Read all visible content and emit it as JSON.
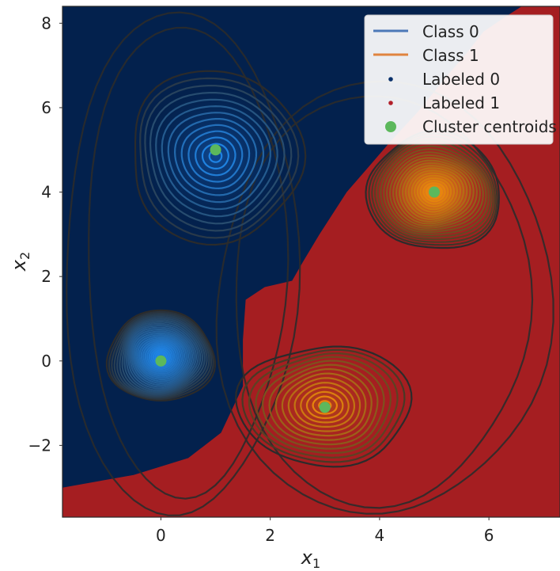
{
  "chart_data": {
    "type": "contour",
    "title": "",
    "xlabel": "x",
    "xlabel_sub": "1",
    "ylabel": "x",
    "ylabel_sub": "2",
    "xlim": [
      -1.8,
      7.3
    ],
    "ylim": [
      -3.7,
      8.4
    ],
    "x_ticks": [
      0,
      2,
      4,
      6
    ],
    "y_ticks": [
      -2,
      0,
      2,
      4,
      6,
      8
    ],
    "x_tick_labels": [
      "0",
      "2",
      "4",
      "6"
    ],
    "y_tick_labels": [
      "−2",
      "0",
      "2",
      "4",
      "6",
      "8"
    ],
    "grid": false,
    "legend_position": "top-right",
    "colors": {
      "region_class0": "#03214d",
      "region_class1": "#a51e21",
      "class0_line": "#4c78b8",
      "class1_line": "#e0843f",
      "class0_contour": "#1f83e3",
      "class1_contour": "#e8860c",
      "outer_contour": "#2b2b2b",
      "centroid": "#5cb85c",
      "labeled0": "#08306b",
      "labeled1": "#b2202a"
    },
    "decision_boundary": [
      [
        -1.8,
        -3.0
      ],
      [
        -0.5,
        -2.7
      ],
      [
        0.5,
        -2.3
      ],
      [
        1.1,
        -1.7
      ],
      [
        1.5,
        -0.6
      ],
      [
        1.5,
        0.5
      ],
      [
        1.55,
        1.45
      ],
      [
        1.9,
        1.75
      ],
      [
        2.4,
        1.9
      ],
      [
        2.6,
        2.35
      ],
      [
        2.9,
        3.0
      ],
      [
        3.4,
        4.0
      ],
      [
        3.8,
        4.6
      ],
      [
        4.2,
        5.2
      ],
      [
        4.7,
        5.9
      ],
      [
        5.2,
        6.7
      ],
      [
        5.6,
        7.3
      ],
      [
        5.9,
        7.8
      ],
      [
        6.3,
        8.15
      ],
      [
        6.6,
        8.4
      ]
    ],
    "series": [
      {
        "name": "Class 0",
        "line_color": "#4c78b8"
      },
      {
        "name": "Class 1",
        "line_color": "#e0843f"
      },
      {
        "name": "Labeled 0",
        "marker_color": "#08306b"
      },
      {
        "name": "Labeled 1",
        "marker_color": "#b2202a"
      },
      {
        "name": "Cluster centroids",
        "marker_color": "#5cb85c"
      }
    ],
    "centroids": [
      {
        "x": 0.0,
        "y": 0.0
      },
      {
        "x": 1.0,
        "y": 5.0
      },
      {
        "x": 3.0,
        "y": -1.1
      },
      {
        "x": 5.0,
        "y": 4.0
      }
    ],
    "clusters": [
      {
        "class": 0,
        "x": 0.0,
        "y": 0.1,
        "sx": 0.95,
        "sy": 1.1,
        "levels": 26
      },
      {
        "class": 0,
        "x": 1.0,
        "y": 4.85,
        "sx": 1.6,
        "sy": 2.0,
        "levels": 13
      },
      {
        "class": 1,
        "x": 3.0,
        "y": -1.05,
        "sx": 1.55,
        "sy": 1.45,
        "levels": 14
      },
      {
        "class": 1,
        "x": 5.0,
        "y": 4.0,
        "sx": 1.25,
        "sy": 1.35,
        "levels": 22
      }
    ]
  }
}
